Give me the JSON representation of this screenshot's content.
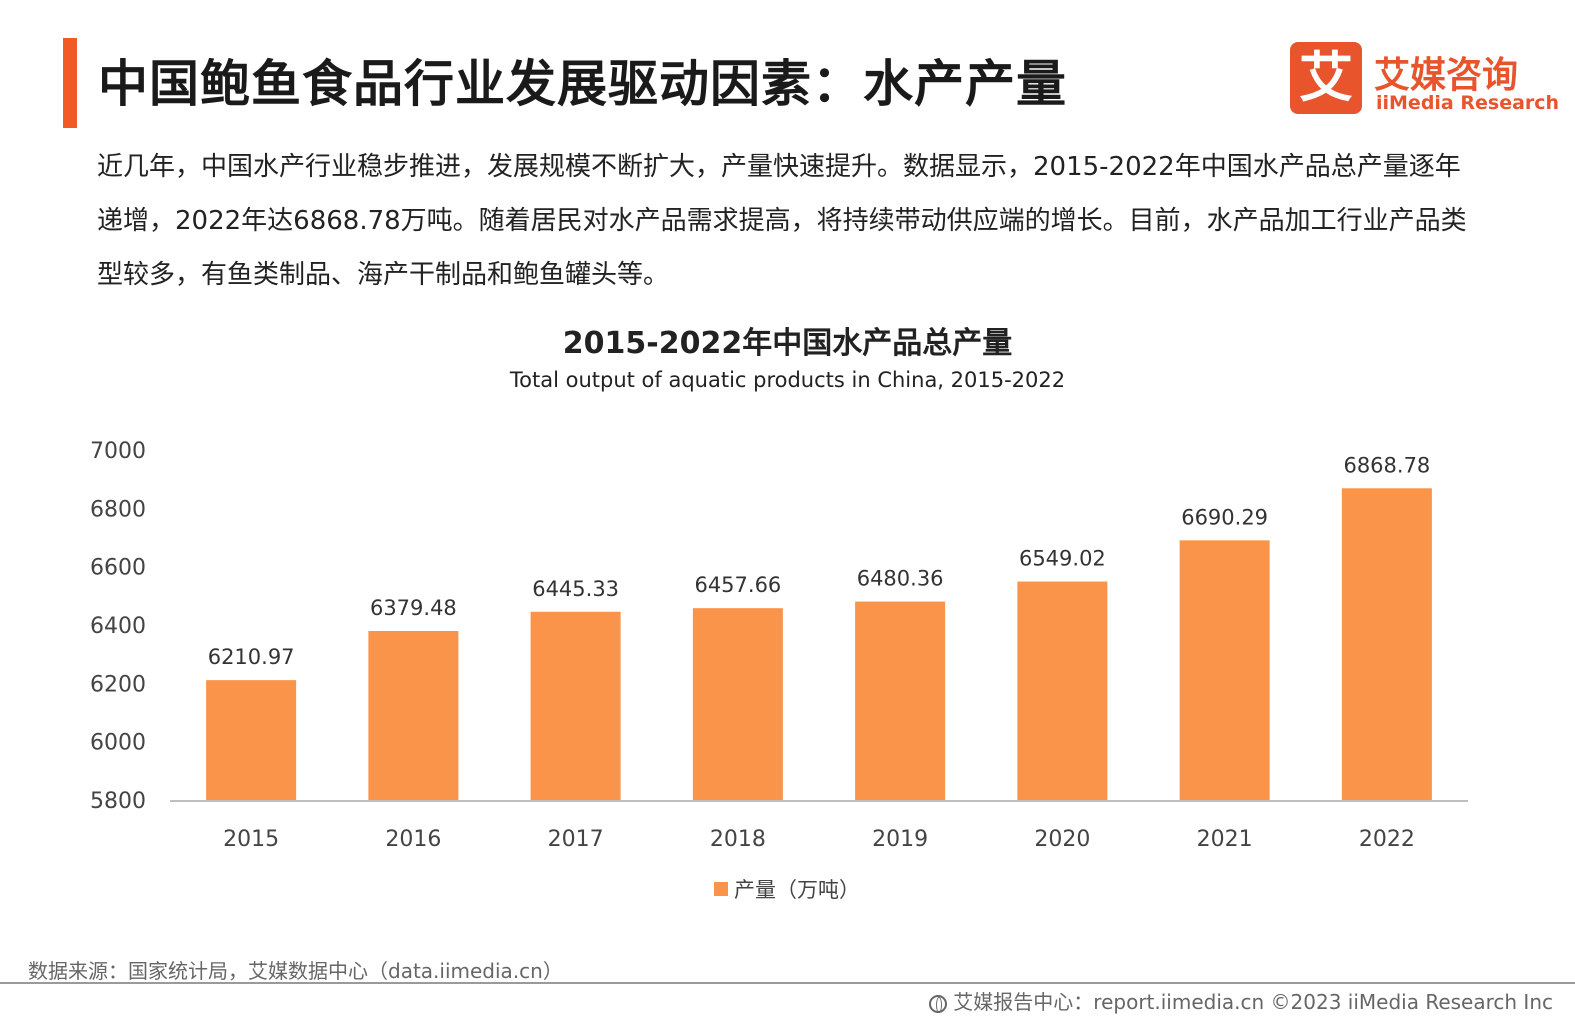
{
  "header": {
    "title": "中国鲍鱼食品行业发展驱动因素：水产产量",
    "logo_mark": "艾",
    "logo_cn": "艾媒咨询",
    "logo_en": "iiMedia Research"
  },
  "description": "近几年，中国水产行业稳步推进，发展规模不断扩大，产量快速提升。数据显示，2015-2022年中国水产品总产量逐年递增，2022年达6868.78万吨。随着居民对水产品需求提高，将持续带动供应端的增长。目前，水产品加工行业产品类型较多，有鱼类制品、海产干制品和鲍鱼罐头等。",
  "colors": {
    "accent": "#f15a24",
    "bar": "#fa944a",
    "logo": "#e8542c"
  },
  "chart_data": {
    "type": "bar",
    "title": "2015-2022年中国水产品总产量",
    "subtitle": "Total output of aquatic products in China, 2015-2022",
    "categories": [
      "2015",
      "2016",
      "2017",
      "2018",
      "2019",
      "2020",
      "2021",
      "2022"
    ],
    "series": [
      {
        "name": "产量（万吨）",
        "values": [
          6210.97,
          6379.48,
          6445.33,
          6457.66,
          6480.36,
          6549.02,
          6690.29,
          6868.78
        ]
      }
    ],
    "value_labels": [
      "6210.97",
      "6379.48",
      "6445.33",
      "6457.66",
      "6480.36",
      "6549.02",
      "6690.29",
      "6868.78"
    ],
    "ylim": [
      5800,
      7000
    ],
    "yticks": [
      "5800",
      "6000",
      "6200",
      "6400",
      "6600",
      "6800",
      "7000"
    ],
    "grid": false,
    "legend_position": "bottom"
  },
  "footer": {
    "source": "数据来源：国家统计局，艾媒数据中心（data.iimedia.cn）",
    "report": "艾媒报告中心：report.iimedia.cn    ©2023  iiMedia Research  Inc"
  }
}
